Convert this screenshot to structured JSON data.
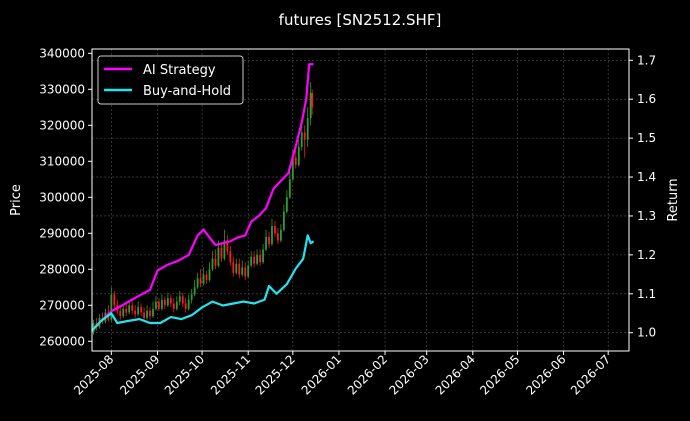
{
  "chart_data": {
    "type": "line",
    "title": "futures [SN2512.SHF]",
    "ylabel_left": "Price",
    "ylabel_right": "Return",
    "xlabel": "",
    "x_ticks": [
      "2025-08",
      "2025-09",
      "2025-10",
      "2025-11",
      "2025-12",
      "2026-01",
      "2026-02",
      "2026-03",
      "2026-04",
      "2026-05",
      "2026-06",
      "2026-07"
    ],
    "y_left_ticks": [
      "260000",
      "270000",
      "280000",
      "290000",
      "300000",
      "310000",
      "320000",
      "330000",
      "340000"
    ],
    "y_right_ticks": [
      "1.0",
      "1.1",
      "1.2",
      "1.3",
      "1.4",
      "1.5",
      "1.6",
      "1.7"
    ],
    "xlim": [
      "2025-07-19",
      "2026-07-15"
    ],
    "ylim_left": [
      257300,
      341200
    ],
    "ylim_right": [
      0.953,
      1.729
    ],
    "grid": true,
    "legend_position": "upper-left",
    "background": "#000000",
    "series": [
      {
        "name": "AI Strategy",
        "axis": "right",
        "color": "#ff00ff",
        "points": [
          [
            "2025-07-19",
            1.005
          ],
          [
            "2025-07-25",
            1.03
          ],
          [
            "2025-08-01",
            1.055
          ],
          [
            "2025-08-08",
            1.07
          ],
          [
            "2025-08-15",
            1.085
          ],
          [
            "2025-08-22",
            1.1
          ],
          [
            "2025-08-27",
            1.11
          ],
          [
            "2025-09-01",
            1.16
          ],
          [
            "2025-09-08",
            1.175
          ],
          [
            "2025-09-15",
            1.185
          ],
          [
            "2025-09-22",
            1.2
          ],
          [
            "2025-09-28",
            1.25
          ],
          [
            "2025-10-02",
            1.265
          ],
          [
            "2025-10-06",
            1.245
          ],
          [
            "2025-10-10",
            1.225
          ],
          [
            "2025-10-15",
            1.23
          ],
          [
            "2025-10-20",
            1.235
          ],
          [
            "2025-10-25",
            1.245
          ],
          [
            "2025-10-30",
            1.25
          ],
          [
            "2025-11-03",
            1.285
          ],
          [
            "2025-11-08",
            1.3
          ],
          [
            "2025-11-13",
            1.32
          ],
          [
            "2025-11-18",
            1.37
          ],
          [
            "2025-11-23",
            1.39
          ],
          [
            "2025-11-28",
            1.41
          ],
          [
            "2025-12-03",
            1.48
          ],
          [
            "2025-12-07",
            1.54
          ],
          [
            "2025-12-10",
            1.6
          ],
          [
            "2025-12-12",
            1.69
          ],
          [
            "2025-12-15",
            1.69
          ]
        ]
      },
      {
        "name": "Buy-and-Hold",
        "axis": "right",
        "color": "#22e5ee",
        "points": [
          [
            "2025-07-19",
            1.005
          ],
          [
            "2025-07-25",
            1.03
          ],
          [
            "2025-08-01",
            1.05
          ],
          [
            "2025-08-05",
            1.025
          ],
          [
            "2025-08-12",
            1.03
          ],
          [
            "2025-08-20",
            1.035
          ],
          [
            "2025-08-27",
            1.025
          ],
          [
            "2025-09-03",
            1.025
          ],
          [
            "2025-09-10",
            1.04
          ],
          [
            "2025-09-17",
            1.035
          ],
          [
            "2025-09-24",
            1.045
          ],
          [
            "2025-10-01",
            1.065
          ],
          [
            "2025-10-08",
            1.08
          ],
          [
            "2025-10-15",
            1.07
          ],
          [
            "2025-10-22",
            1.075
          ],
          [
            "2025-10-29",
            1.08
          ],
          [
            "2025-11-05",
            1.075
          ],
          [
            "2025-11-12",
            1.085
          ],
          [
            "2025-11-15",
            1.12
          ],
          [
            "2025-11-20",
            1.1
          ],
          [
            "2025-11-27",
            1.125
          ],
          [
            "2025-12-03",
            1.165
          ],
          [
            "2025-12-08",
            1.19
          ],
          [
            "2025-12-11",
            1.25
          ],
          [
            "2025-12-13",
            1.23
          ],
          [
            "2025-12-15",
            1.235
          ]
        ]
      }
    ],
    "candles": {
      "axis": "left",
      "up_color": "#2ca02c",
      "down_color": "#ff1a1a",
      "points": [
        [
          "2025-07-20",
          262500,
          265000,
          261800,
          266000
        ],
        [
          "2025-07-22",
          265000,
          264000,
          263000,
          266500
        ],
        [
          "2025-07-24",
          264000,
          266500,
          263500,
          267500
        ],
        [
          "2025-07-26",
          266500,
          265500,
          264800,
          268000
        ],
        [
          "2025-07-28",
          265500,
          268000,
          265000,
          269000
        ],
        [
          "2025-07-30",
          268000,
          266000,
          265500,
          270000
        ],
        [
          "2025-08-01",
          266000,
          273000,
          265500,
          275000
        ],
        [
          "2025-08-03",
          273000,
          270000,
          269000,
          274000
        ],
        [
          "2025-08-05",
          270000,
          268500,
          267500,
          271500
        ],
        [
          "2025-08-07",
          268500,
          267000,
          266000,
          270000
        ],
        [
          "2025-08-09",
          267000,
          269000,
          266500,
          270500
        ],
        [
          "2025-08-11",
          269000,
          268000,
          267000,
          271000
        ],
        [
          "2025-08-13",
          268000,
          270000,
          267500,
          271500
        ],
        [
          "2025-08-15",
          270000,
          268500,
          267500,
          272000
        ],
        [
          "2025-08-17",
          268500,
          267500,
          266500,
          270000
        ],
        [
          "2025-08-19",
          267500,
          269500,
          267000,
          271000
        ],
        [
          "2025-08-21",
          269500,
          268000,
          267000,
          270500
        ],
        [
          "2025-08-23",
          268000,
          266500,
          265500,
          269500
        ],
        [
          "2025-08-25",
          266500,
          268500,
          266000,
          270000
        ],
        [
          "2025-08-27",
          268500,
          267000,
          266000,
          269500
        ],
        [
          "2025-08-29",
          267000,
          269000,
          266500,
          271000
        ],
        [
          "2025-08-31",
          269000,
          271000,
          268500,
          272500
        ],
        [
          "2025-09-02",
          271000,
          269000,
          268500,
          272000
        ],
        [
          "2025-09-04",
          269000,
          271500,
          268500,
          273000
        ],
        [
          "2025-09-06",
          271500,
          270000,
          269000,
          272500
        ],
        [
          "2025-09-08",
          270000,
          272000,
          269500,
          273500
        ],
        [
          "2025-09-10",
          272000,
          270500,
          269500,
          273000
        ],
        [
          "2025-09-12",
          270500,
          269000,
          268000,
          272000
        ],
        [
          "2025-09-14",
          269000,
          271000,
          268500,
          272500
        ],
        [
          "2025-09-16",
          271000,
          272500,
          270000,
          274000
        ],
        [
          "2025-09-18",
          272500,
          270500,
          269500,
          273500
        ],
        [
          "2025-09-20",
          270500,
          269000,
          268000,
          272000
        ],
        [
          "2025-09-22",
          269000,
          271500,
          268500,
          273000
        ],
        [
          "2025-09-24",
          271500,
          273000,
          270500,
          274500
        ],
        [
          "2025-09-26",
          273000,
          275000,
          272500,
          277000
        ],
        [
          "2025-09-28",
          275000,
          277500,
          274500,
          279000
        ],
        [
          "2025-09-30",
          277500,
          276000,
          275000,
          280000
        ],
        [
          "2025-10-02",
          276000,
          278500,
          275500,
          280500
        ],
        [
          "2025-10-04",
          278500,
          277000,
          276000,
          279500
        ],
        [
          "2025-10-06",
          277000,
          280000,
          276500,
          282000
        ],
        [
          "2025-10-08",
          280000,
          283000,
          279500,
          285000
        ],
        [
          "2025-10-10",
          283000,
          281000,
          280000,
          285500
        ],
        [
          "2025-10-12",
          281000,
          286000,
          280500,
          288000
        ],
        [
          "2025-10-14",
          286000,
          283000,
          282000,
          287000
        ],
        [
          "2025-10-16",
          283000,
          288000,
          282500,
          291000
        ],
        [
          "2025-10-18",
          288000,
          285000,
          284000,
          289500
        ],
        [
          "2025-10-20",
          285000,
          282000,
          281000,
          286500
        ],
        [
          "2025-10-22",
          282000,
          279000,
          278000,
          283500
        ],
        [
          "2025-10-24",
          279000,
          281500,
          278500,
          283000
        ],
        [
          "2025-10-26",
          281500,
          278500,
          277500,
          283000
        ],
        [
          "2025-10-28",
          278500,
          280500,
          278000,
          282500
        ],
        [
          "2025-10-30",
          280500,
          278000,
          277000,
          282000
        ],
        [
          "2025-11-01",
          278000,
          281000,
          277500,
          282500
        ],
        [
          "2025-11-03",
          281000,
          283500,
          280500,
          285000
        ],
        [
          "2025-11-05",
          283500,
          281500,
          280500,
          285000
        ],
        [
          "2025-11-07",
          281500,
          284000,
          281000,
          285500
        ],
        [
          "2025-11-09",
          284000,
          282000,
          281000,
          285500
        ],
        [
          "2025-11-11",
          282000,
          285500,
          281500,
          287000
        ],
        [
          "2025-11-13",
          285500,
          289000,
          285000,
          291000
        ],
        [
          "2025-11-15",
          289000,
          287000,
          286000,
          290500
        ],
        [
          "2025-11-17",
          287000,
          292000,
          286500,
          294000
        ],
        [
          "2025-11-19",
          292000,
          290000,
          289000,
          293500
        ],
        [
          "2025-11-21",
          290000,
          288000,
          287000,
          291500
        ],
        [
          "2025-11-23",
          288000,
          291000,
          287500,
          292500
        ],
        [
          "2025-11-25",
          291000,
          296000,
          290500,
          298000
        ],
        [
          "2025-11-27",
          296000,
          300000,
          295500,
          302000
        ],
        [
          "2025-11-29",
          300000,
          305000,
          299500,
          307000
        ],
        [
          "2025-12-01",
          305000,
          311000,
          304500,
          313000
        ],
        [
          "2025-12-03",
          311000,
          309000,
          308000,
          313000
        ],
        [
          "2025-12-05",
          309000,
          314000,
          308500,
          316000
        ],
        [
          "2025-12-07",
          314000,
          318000,
          313000,
          321000
        ],
        [
          "2025-12-09",
          318000,
          316000,
          311000,
          320000
        ],
        [
          "2025-12-11",
          316000,
          322000,
          314000,
          325000
        ],
        [
          "2025-12-13",
          322000,
          329000,
          320000,
          332000
        ],
        [
          "2025-12-14",
          329000,
          325000,
          323000,
          330000
        ]
      ]
    }
  }
}
